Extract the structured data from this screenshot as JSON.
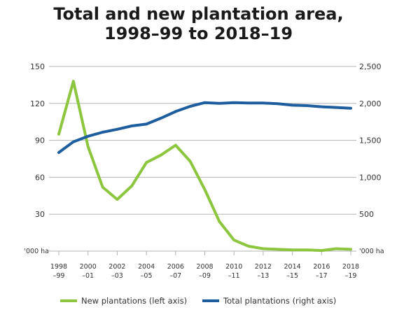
{
  "chart_data": {
    "type": "line",
    "title_lines": [
      "Total and new plantation area,",
      "1998–99 to 2018–19"
    ],
    "x": [
      "1998–99",
      "1999–00",
      "2000–01",
      "2001–02",
      "2002–03",
      "2003–04",
      "2004–05",
      "2005–06",
      "2006–07",
      "2007–08",
      "2008–09",
      "2009–10",
      "2010–11",
      "2011–12",
      "2012–13",
      "2013–14",
      "2014–15",
      "2015–16",
      "2016–17",
      "2017–18",
      "2018–19"
    ],
    "x_tick_labels": [
      {
        "index": 0,
        "top": "1998",
        "bottom": "–99"
      },
      {
        "index": 2,
        "top": "2000",
        "bottom": "–01"
      },
      {
        "index": 4,
        "top": "2002",
        "bottom": "–03"
      },
      {
        "index": 6,
        "top": "2004",
        "bottom": "–05"
      },
      {
        "index": 8,
        "top": "2006",
        "bottom": "–07"
      },
      {
        "index": 10,
        "top": "2008",
        "bottom": "–09"
      },
      {
        "index": 12,
        "top": "2010",
        "bottom": "–11"
      },
      {
        "index": 14,
        "top": "2012",
        "bottom": "–13"
      },
      {
        "index": 16,
        "top": "2014",
        "bottom": "–15"
      },
      {
        "index": 18,
        "top": "2016",
        "bottom": "–17"
      },
      {
        "index": 20,
        "top": "2018",
        "bottom": "–19"
      }
    ],
    "left_axis": {
      "unit_label": "'000 ha",
      "ylim": [
        0,
        150
      ],
      "ticks": [
        30,
        60,
        90,
        120,
        150
      ],
      "tick_labels": [
        "30",
        "60",
        "90",
        "120",
        "150"
      ]
    },
    "right_axis": {
      "unit_label": "'000 ha",
      "ylim": [
        0,
        2500
      ],
      "ticks": [
        500,
        1000,
        1500,
        2000,
        2500
      ],
      "tick_labels": [
        "500",
        "1,000",
        "1,500",
        "2,000",
        "2,500"
      ]
    },
    "grid": true,
    "legend_position": "bottom",
    "series": [
      {
        "name": "New plantations (left axis)",
        "axis": "left",
        "color": "#8cc63f",
        "values": [
          95,
          138,
          85,
          52,
          42,
          53,
          72,
          78,
          86,
          73,
          50,
          24,
          9,
          4,
          2,
          1.5,
          1,
          1,
          0.5,
          2,
          1.5
        ]
      },
      {
        "name": "Total plantations (right axis)",
        "axis": "right",
        "color": "#1f5e9e",
        "values": [
          1335,
          1480,
          1555,
          1610,
          1650,
          1695,
          1720,
          1800,
          1890,
          1960,
          2010,
          2000,
          2010,
          2005,
          2005,
          1995,
          1975,
          1970,
          1955,
          1945,
          1935
        ]
      }
    ]
  }
}
